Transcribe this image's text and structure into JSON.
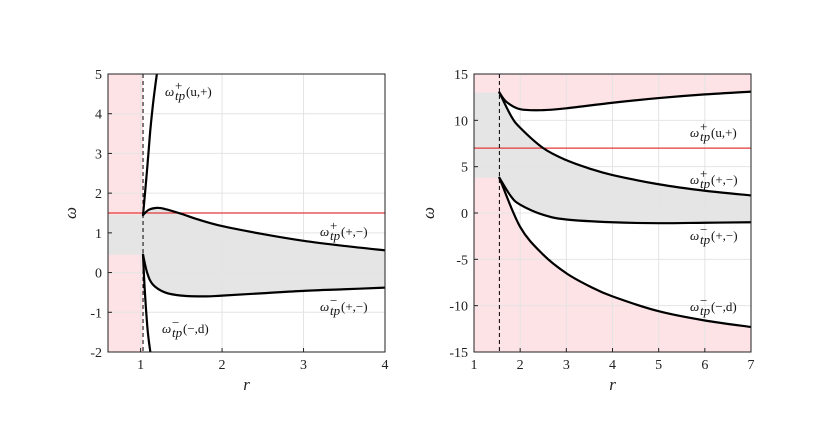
{
  "chart_data": [
    {
      "type": "line",
      "xlabel": "r",
      "ylabel": "ω",
      "xlim": [
        0.6,
        4
      ],
      "ylim": [
        -2,
        5
      ],
      "xticks": [
        "1",
        "2",
        "3",
        "4"
      ],
      "yticks": [
        "-2",
        "-1",
        "0",
        "1",
        "2",
        "3",
        "4",
        "5"
      ],
      "grid": true,
      "horizon_r": 1.03,
      "reference_omega": 1.5,
      "red_region": {
        "x_from": 0.6,
        "x_to": 1.03,
        "gray_band": [
          0.45,
          1.45
        ]
      },
      "series": [
        {
          "label_base": "ω",
          "label_sub": "tp",
          "label_sup": "+",
          "label_args": "(u,+)",
          "x": [
            1.03,
            1.05,
            1.08,
            1.1,
            1.12,
            1.15,
            1.18,
            1.2
          ],
          "y": [
            1.45,
            1.9,
            2.6,
            3.1,
            3.6,
            4.2,
            4.7,
            5.0
          ]
        },
        {
          "label_base": "ω",
          "label_sub": "tp",
          "label_sup": "+",
          "label_args": "(+,−)",
          "x": [
            1.03,
            1.1,
            1.2,
            1.3,
            1.5,
            1.7,
            2.0,
            2.5,
            3.0,
            3.5,
            4.0
          ],
          "y": [
            1.45,
            1.58,
            1.63,
            1.6,
            1.48,
            1.34,
            1.17,
            0.97,
            0.8,
            0.67,
            0.56
          ]
        },
        {
          "label_base": "ω",
          "label_sub": "tp",
          "label_sup": "−",
          "label_args": "(+,−)",
          "x": [
            1.03,
            1.08,
            1.15,
            1.3,
            1.5,
            1.8,
            2.0,
            2.5,
            3.0,
            3.5,
            4.0
          ],
          "y": [
            0.45,
            0.0,
            -0.3,
            -0.5,
            -0.58,
            -0.6,
            -0.58,
            -0.52,
            -0.46,
            -0.42,
            -0.38
          ]
        },
        {
          "label_base": "ω",
          "label_sub": "tp",
          "label_sup": "−",
          "label_args": "(−,d)",
          "x": [
            1.03,
            1.05,
            1.08,
            1.1,
            1.12
          ],
          "y": [
            0.45,
            -0.4,
            -1.3,
            -1.7,
            -2.0
          ]
        }
      ]
    },
    {
      "type": "line",
      "xlabel": "r",
      "ylabel": "ω",
      "xlim": [
        1,
        7
      ],
      "ylim": [
        -15,
        15
      ],
      "xticks": [
        "1",
        "2",
        "3",
        "4",
        "5",
        "6",
        "7"
      ],
      "yticks": [
        "-15",
        "-10",
        "-5",
        "0",
        "5",
        "10",
        "15"
      ],
      "grid": true,
      "horizon_r": 1.55,
      "reference_omega": 7,
      "red_region": {
        "x_from": 1,
        "x_to": 1.55,
        "gray_band": [
          3.8,
          13
        ]
      },
      "series": [
        {
          "label_base": "ω",
          "label_sub": "tp",
          "label_sup": "+",
          "label_args": "(u,+)",
          "x": [
            1.55,
            1.7,
            2.0,
            2.5,
            3.0,
            4.0,
            5.0,
            6.0,
            7.0
          ],
          "y": [
            13.0,
            12.0,
            11.2,
            11.1,
            11.3,
            11.9,
            12.4,
            12.8,
            13.1
          ]
        },
        {
          "label_base": "ω",
          "label_sub": "tp",
          "label_sup": "+",
          "label_args": "(+,−)",
          "x": [
            1.55,
            1.8,
            2.0,
            2.5,
            3.0,
            3.5,
            4.0,
            5.0,
            6.0,
            7.0
          ],
          "y": [
            13.0,
            10.5,
            9.2,
            7.0,
            5.7,
            4.8,
            4.1,
            3.1,
            2.4,
            1.9
          ]
        },
        {
          "label_base": "ω",
          "label_sub": "tp",
          "label_sup": "−",
          "label_args": "(+,−)",
          "x": [
            1.55,
            1.8,
            2.0,
            2.5,
            3.0,
            4.0,
            5.0,
            6.0,
            7.0
          ],
          "y": [
            3.8,
            1.8,
            0.9,
            -0.2,
            -0.7,
            -1.0,
            -1.1,
            -1.05,
            -1.0
          ]
        },
        {
          "label_base": "ω",
          "label_sub": "tp",
          "label_sup": "−",
          "label_args": "(−,d)",
          "x": [
            1.55,
            2.0,
            2.5,
            3.0,
            3.5,
            4.0,
            5.0,
            6.0,
            7.0
          ],
          "y": [
            3.8,
            -1.5,
            -4.5,
            -6.5,
            -7.9,
            -9.0,
            -10.6,
            -11.6,
            -12.3
          ]
        }
      ]
    }
  ]
}
